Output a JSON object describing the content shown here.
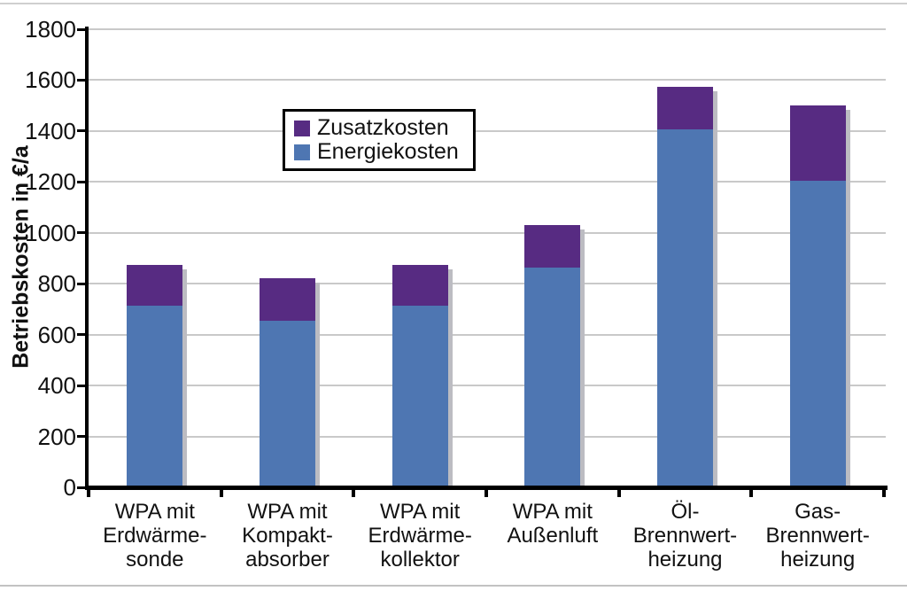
{
  "chart_data": {
    "type": "bar",
    "stacked": true,
    "title": "",
    "ylabel": "Betriebskosten in €/a",
    "xlabel": "",
    "ylim": [
      0,
      1800
    ],
    "ytick_step": 200,
    "ytick_labels": [
      "0",
      "200",
      "400",
      "600",
      "800",
      "1000",
      "1200",
      "1400",
      "1600",
      "1800"
    ],
    "grid": true,
    "legend_position": "inside-top-left-of-center",
    "legend_order": [
      "Zusatzkosten",
      "Energiekosten"
    ],
    "categories": [
      "WPA mit\nErdwärme-\nsonde",
      "WPA mit\nKompakt-\nabsorber",
      "WPA mit\nErdwärme-\nkollektor",
      "WPA mit\nAußenluft",
      "Öl-\nBrennwert-\nheizung",
      "Gas-\nBrennwert-\nheizung"
    ],
    "series": [
      {
        "name": "Energiekosten",
        "color": "#4e76b2",
        "values": [
          715,
          655,
          715,
          865,
          1405,
          1205
        ]
      },
      {
        "name": "Zusatzkosten",
        "color": "#572b82",
        "values": [
          160,
          165,
          160,
          165,
          170,
          295
        ]
      }
    ],
    "stack_totals": [
      875,
      820,
      875,
      1030,
      1575,
      1500
    ],
    "colors": {
      "axis": "#000000",
      "gridline": "#c9c9c9",
      "bar_shadow": "#bcbcc2",
      "text": "#111111",
      "background": "#ffffff",
      "page_border": "#cfcfcf"
    }
  }
}
